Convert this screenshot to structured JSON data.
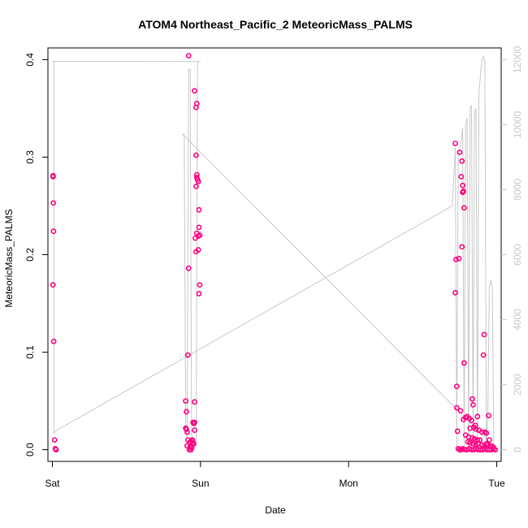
{
  "chart_data": {
    "type": "scatter",
    "title": "ATOM4 Northeast_Pacific_2 MeteoricMass_PALMS",
    "xlabel": "Date",
    "ylabel": "MeteoricMass_PALMS",
    "x_ticks": [
      {
        "label": "Sat",
        "day": 0
      },
      {
        "label": "Sun",
        "day": 1
      },
      {
        "label": "Mon",
        "day": 2
      },
      {
        "label": "Tue",
        "day": 3
      }
    ],
    "xlim": [
      -0.03,
      3.03
    ],
    "ylim": [
      -0.012,
      0.412
    ],
    "y_ticks": [
      0.0,
      0.1,
      0.2,
      0.3,
      0.4
    ],
    "y_tick_labels": [
      "0.0",
      "0.1",
      "0.2",
      "0.3",
      "0.4"
    ],
    "y2_lim": [
      -360,
      12360
    ],
    "y2_ticks": [
      0,
      2000,
      4000,
      6000,
      8000,
      10000,
      12000
    ],
    "y2_tick_labels": [
      "0",
      "2000",
      "4000",
      "6000",
      "8000",
      "10000",
      "12000"
    ],
    "grid": false,
    "legend": "none",
    "colors": {
      "points": "#ff0080",
      "altitude_line": "#c8c8c8",
      "axes": "#000000"
    },
    "series": [
      {
        "marker": "circle",
        "color": "#ff0080",
        "points": [
          [
            0.005,
            0.281
          ],
          [
            0.005,
            0.28
          ],
          [
            0.007,
            0.253
          ],
          [
            0.008,
            0.224
          ],
          [
            0.004,
            0.169
          ],
          [
            0.009,
            0.111
          ],
          [
            0.015,
            0.01
          ],
          [
            0.02,
            0.001
          ],
          [
            0.025,
            0.0
          ],
          [
            0.92,
            0.404
          ],
          [
            0.96,
            0.368
          ],
          [
            0.97,
            0.351
          ],
          [
            0.975,
            0.355
          ],
          [
            0.97,
            0.302
          ],
          [
            0.975,
            0.282
          ],
          [
            0.975,
            0.279
          ],
          [
            0.98,
            0.277
          ],
          [
            0.985,
            0.275
          ],
          [
            0.97,
            0.27
          ],
          [
            0.99,
            0.246
          ],
          [
            0.99,
            0.228
          ],
          [
            0.975,
            0.222
          ],
          [
            0.985,
            0.219
          ],
          [
            0.995,
            0.22
          ],
          [
            0.965,
            0.217
          ],
          [
            0.97,
            0.203
          ],
          [
            0.985,
            0.205
          ],
          [
            0.92,
            0.186
          ],
          [
            0.995,
            0.169
          ],
          [
            0.99,
            0.16
          ],
          [
            0.915,
            0.097
          ],
          [
            0.9,
            0.05
          ],
          [
            0.96,
            0.049
          ],
          [
            0.905,
            0.039
          ],
          [
            0.95,
            0.028
          ],
          [
            0.955,
            0.027
          ],
          [
            0.96,
            0.028
          ],
          [
            0.9,
            0.022
          ],
          [
            0.905,
            0.021
          ],
          [
            0.91,
            0.018
          ],
          [
            0.96,
            0.02
          ],
          [
            0.915,
            0.01
          ],
          [
            0.93,
            0.008
          ],
          [
            0.945,
            0.009
          ],
          [
            0.95,
            0.007
          ],
          [
            0.955,
            0.006
          ],
          [
            0.93,
            0.003
          ],
          [
            0.94,
            0.002
          ],
          [
            0.91,
            0.004
          ],
          [
            0.925,
            0.0
          ],
          [
            0.935,
            0.0
          ],
          [
            0.945,
            0.01
          ],
          [
            2.72,
            0.314
          ],
          [
            2.75,
            0.305
          ],
          [
            2.765,
            0.296
          ],
          [
            2.76,
            0.28
          ],
          [
            2.77,
            0.271
          ],
          [
            2.775,
            0.265
          ],
          [
            2.77,
            0.264
          ],
          [
            2.78,
            0.248
          ],
          [
            2.765,
            0.208
          ],
          [
            2.725,
            0.195
          ],
          [
            2.745,
            0.196
          ],
          [
            2.72,
            0.161
          ],
          [
            2.915,
            0.118
          ],
          [
            2.91,
            0.097
          ],
          [
            2.78,
            0.089
          ],
          [
            2.73,
            0.065
          ],
          [
            2.835,
            0.052
          ],
          [
            2.84,
            0.046
          ],
          [
            2.73,
            0.043
          ],
          [
            2.755,
            0.04
          ],
          [
            2.8,
            0.034
          ],
          [
            2.775,
            0.031
          ],
          [
            2.79,
            0.033
          ],
          [
            2.815,
            0.032
          ],
          [
            2.87,
            0.034
          ],
          [
            2.945,
            0.035
          ],
          [
            2.83,
            0.03
          ],
          [
            2.855,
            0.025
          ],
          [
            2.845,
            0.023
          ],
          [
            2.82,
            0.022
          ],
          [
            2.86,
            0.021
          ],
          [
            2.88,
            0.02
          ],
          [
            2.735,
            0.019
          ],
          [
            2.9,
            0.018
          ],
          [
            2.93,
            0.017
          ],
          [
            2.92,
            0.018
          ],
          [
            2.79,
            0.015
          ],
          [
            2.81,
            0.013
          ],
          [
            2.835,
            0.012
          ],
          [
            2.85,
            0.011
          ],
          [
            2.87,
            0.01
          ],
          [
            2.885,
            0.01
          ],
          [
            2.95,
            0.01
          ],
          [
            2.805,
            0.008
          ],
          [
            2.82,
            0.007
          ],
          [
            2.84,
            0.006
          ],
          [
            2.86,
            0.005
          ],
          [
            2.875,
            0.006
          ],
          [
            2.9,
            0.005
          ],
          [
            2.915,
            0.004
          ],
          [
            2.93,
            0.006
          ],
          [
            2.94,
            0.005
          ],
          [
            2.96,
            0.004
          ],
          [
            2.975,
            0.003
          ],
          [
            2.74,
            0.001
          ],
          [
            2.75,
            0.0
          ],
          [
            2.76,
            0.0
          ],
          [
            2.77,
            0.001
          ],
          [
            2.785,
            0.0
          ],
          [
            2.8,
            0.0
          ],
          [
            2.815,
            0.001
          ],
          [
            2.83,
            0.0
          ],
          [
            2.845,
            0.0
          ],
          [
            2.86,
            0.001
          ],
          [
            2.875,
            0.0
          ],
          [
            2.89,
            0.0
          ],
          [
            2.905,
            0.0
          ],
          [
            2.92,
            0.001
          ],
          [
            2.935,
            0.0
          ],
          [
            2.95,
            0.0
          ],
          [
            2.965,
            0.0
          ],
          [
            2.98,
            0.001
          ],
          [
            2.99,
            0.0
          ]
        ]
      },
      {
        "line": "altitude",
        "axis": "right",
        "color": "#c8c8c8",
        "points": [
          [
            0.0,
            11940
          ],
          [
            0.0,
            11960
          ],
          [
            0.0,
            11940
          ],
          [
            0.01,
            11950
          ],
          [
            0.01,
            500
          ],
          [
            0.03,
            600
          ],
          [
            2.7,
            7500
          ],
          [
            2.72,
            9300
          ],
          [
            2.73,
            100
          ],
          [
            2.74,
            9100
          ],
          [
            2.75,
            9200
          ],
          [
            2.76,
            9500
          ],
          [
            2.77,
            9900
          ],
          [
            2.78,
            100
          ],
          [
            2.79,
            10000
          ],
          [
            2.8,
            10200
          ],
          [
            2.81,
            100
          ],
          [
            2.82,
            10500
          ],
          [
            2.83,
            10600
          ],
          [
            2.84,
            100
          ],
          [
            2.85,
            10400
          ],
          [
            2.86,
            10500
          ],
          [
            2.87,
            100
          ],
          [
            2.88,
            11000
          ],
          [
            2.89,
            11500
          ],
          [
            2.9,
            12000
          ],
          [
            2.91,
            12100
          ],
          [
            2.92,
            11900
          ],
          [
            2.93,
            100
          ],
          [
            2.94,
            1200
          ],
          [
            2.95,
            5000
          ],
          [
            2.96,
            5200
          ],
          [
            2.97,
            5000
          ],
          [
            2.98,
            100
          ],
          [
            0.88,
            9700
          ],
          [
            0.89,
            9700
          ],
          [
            0.9,
            600
          ],
          [
            0.91,
            400
          ],
          [
            0.92,
            11700
          ],
          [
            0.93,
            11700
          ],
          [
            0.94,
            300
          ],
          [
            0.95,
            200
          ],
          [
            0.96,
            200
          ],
          [
            0.97,
            300
          ],
          [
            0.98,
            11900
          ],
          [
            0.99,
            11950
          ],
          [
            1.0,
            11940
          ],
          [
            0.01,
            11950
          ]
        ]
      }
    ]
  }
}
